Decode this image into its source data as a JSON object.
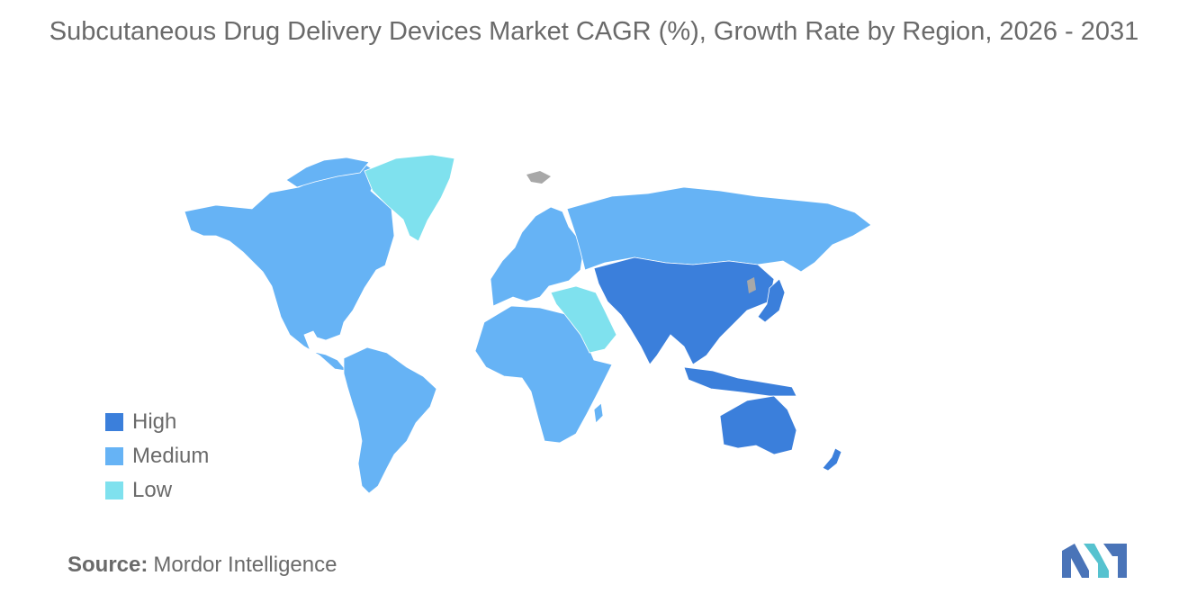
{
  "title": "Subcutaneous Drug Delivery Devices Market CAGR (%), Growth Rate by Region, 2026 - 2031",
  "legend": [
    {
      "key": "high",
      "label": "High",
      "color": "#3b7fdb"
    },
    {
      "key": "medium",
      "label": "Medium",
      "color": "#66b3f5"
    },
    {
      "key": "low",
      "label": "Low",
      "color": "#7fe1ee"
    }
  ],
  "no_data_color": "#a8a8a8",
  "regions": [
    {
      "name": "North America",
      "level": "medium"
    },
    {
      "name": "Greenland",
      "level": "low"
    },
    {
      "name": "South America",
      "level": "medium"
    },
    {
      "name": "Europe",
      "level": "medium"
    },
    {
      "name": "Russia",
      "level": "medium"
    },
    {
      "name": "Africa",
      "level": "medium"
    },
    {
      "name": "Middle East",
      "level": "low"
    },
    {
      "name": "Asia-Pacific",
      "level": "high"
    },
    {
      "name": "Australia and New Zealand",
      "level": "high"
    }
  ],
  "source": {
    "label": "Source:",
    "value": "Mordor Intelligence"
  },
  "logo": {
    "icon": "mordor-intelligence-logo",
    "colors": [
      "#4a74b8",
      "#56c2cf"
    ]
  }
}
